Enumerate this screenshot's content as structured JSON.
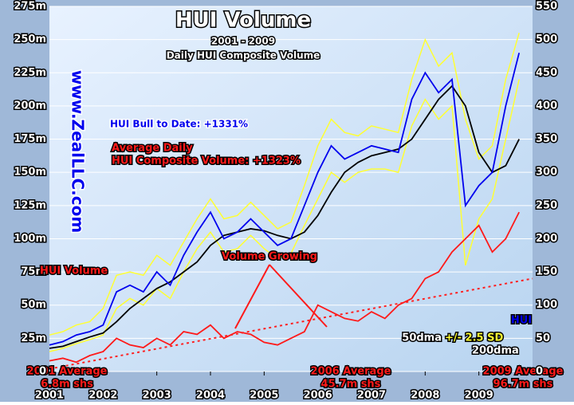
{
  "chart_data": {
    "type": "line",
    "title": "HUI Volume",
    "subtitle": "2001 - 2009",
    "caption": "Daily HUI Composite Volume",
    "watermark": "www.ZealLLC.com",
    "annotations": [
      "HUI Bull to Date: +1331%",
      "Average Daily",
      "HUI Composite Volume: +1323%",
      "Volume Growing",
      "2001 Average",
      "6.8m shs",
      "2006 Average",
      "45.7m shs",
      "2009 Average",
      "96.7m shs",
      "50dma"
    ],
    "x": [
      2001,
      2001.25,
      2001.5,
      2001.75,
      2002,
      2002.25,
      2002.5,
      2002.75,
      2003,
      2003.25,
      2003.5,
      2003.75,
      2004,
      2004.25,
      2004.5,
      2004.75,
      2005,
      2005.25,
      2005.5,
      2005.75,
      2006,
      2006.25,
      2006.5,
      2006.75,
      2007,
      2007.25,
      2007.5,
      2007.75,
      2008,
      2008.25,
      2008.5,
      2008.75,
      2009,
      2009.25,
      2009.5,
      2009.75
    ],
    "xlim": [
      2001,
      2010
    ],
    "xticks": [
      2001,
      2002,
      2003,
      2004,
      2005,
      2006,
      2007,
      2008,
      2009
    ],
    "ylim": [
      0,
      275
    ],
    "yticks": [
      {
        "value": 0,
        "label": "0"
      },
      {
        "value": 25,
        "label": "25m"
      },
      {
        "value": 50,
        "label": "50m"
      },
      {
        "value": 75,
        "label": "75m"
      },
      {
        "value": 100,
        "label": "100m"
      },
      {
        "value": 125,
        "label": "125m"
      },
      {
        "value": 150,
        "label": "150m"
      },
      {
        "value": 175,
        "label": "175m"
      },
      {
        "value": 200,
        "label": "200m"
      },
      {
        "value": 225,
        "label": "225m"
      },
      {
        "value": 250,
        "label": "250m"
      },
      {
        "value": 275,
        "label": "275m"
      }
    ],
    "y2lim": [
      0,
      550
    ],
    "y2ticks": [
      0,
      50,
      100,
      150,
      200,
      250,
      300,
      350,
      400,
      450,
      500,
      550
    ],
    "band": {
      "name": "+/- 2.5 SD",
      "color": "#ffff33",
      "axis": "y2",
      "upper": [
        55,
        60,
        70,
        75,
        95,
        145,
        150,
        145,
        175,
        160,
        195,
        230,
        260,
        230,
        235,
        255,
        235,
        215,
        225,
        280,
        340,
        380,
        360,
        355,
        370,
        365,
        360,
        440,
        500,
        460,
        480,
        380,
        320,
        340,
        440,
        510
      ],
      "lower": [
        30,
        35,
        42,
        48,
        55,
        95,
        110,
        100,
        125,
        110,
        150,
        185,
        210,
        180,
        185,
        205,
        185,
        170,
        178,
        220,
        260,
        300,
        285,
        300,
        305,
        305,
        300,
        370,
        410,
        380,
        400,
        160,
        230,
        260,
        350,
        440
      ]
    },
    "trend": {
      "color": "#ff2020",
      "x": [
        2001,
        2010
      ],
      "values": [
        2,
        70
      ]
    },
    "series": [
      {
        "name": "HUI Volume",
        "color": "#ff1a1a",
        "values": [
          8,
          10,
          7,
          12,
          15,
          25,
          20,
          18,
          25,
          20,
          30,
          28,
          35,
          25,
          30,
          28,
          22,
          20,
          25,
          30,
          50,
          45,
          40,
          38,
          45,
          40,
          50,
          55,
          70,
          75,
          90,
          100,
          110,
          90,
          100,
          120
        ]
      },
      {
        "name": "200dma",
        "color": "#000000",
        "axis": "y2",
        "values": [
          35,
          38,
          45,
          52,
          58,
          75,
          95,
          110,
          125,
          135,
          150,
          165,
          190,
          205,
          210,
          215,
          212,
          205,
          200,
          210,
          235,
          270,
          300,
          315,
          325,
          330,
          335,
          350,
          380,
          410,
          430,
          400,
          330,
          300,
          310,
          350
        ]
      },
      {
        "name": "HUI",
        "color": "#0000ee",
        "axis": "y2",
        "values": [
          40,
          45,
          55,
          60,
          70,
          120,
          130,
          120,
          150,
          130,
          175,
          210,
          240,
          200,
          210,
          230,
          210,
          190,
          200,
          250,
          300,
          340,
          320,
          330,
          340,
          335,
          330,
          410,
          450,
          420,
          440,
          250,
          280,
          300,
          400,
          480
        ]
      }
    ]
  }
}
